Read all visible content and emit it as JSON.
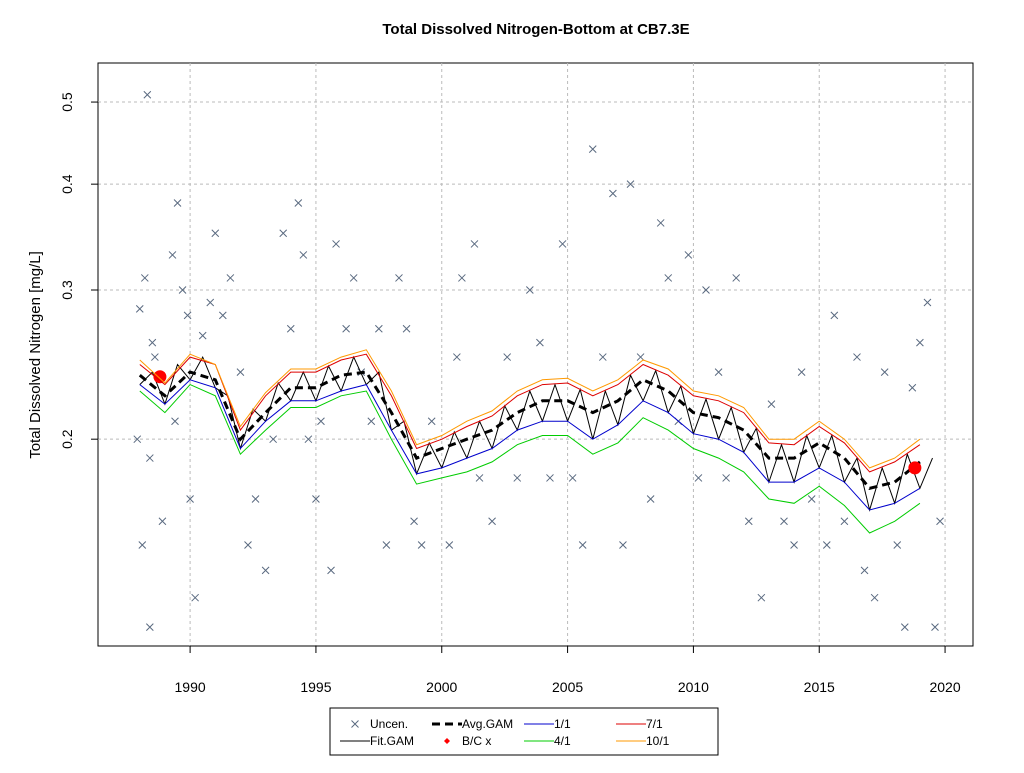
{
  "chart_data": {
    "type": "line",
    "title": "Total Dissolved Nitrogen-Bottom at CB7.3E",
    "y_label": "Total Dissolved Nitrogen [mg/L]",
    "log_y": true,
    "grid": true,
    "legend": "bottom",
    "xlim": [
      1986.34,
      2021.11
    ],
    "xticks": [
      1990,
      1995,
      2000,
      2005,
      2010,
      2015,
      2020
    ],
    "ylim": [
      0.114,
      0.556
    ],
    "yticks": [
      0.2,
      0.3,
      0.4,
      0.5
    ],
    "series": [
      {
        "name": "Uncen.",
        "type": "scatter",
        "color": "#5a6a80",
        "x": [
          1988.3,
          1988.0,
          1988.2,
          1988.5,
          1988.6,
          1987.9,
          1988.4,
          1988.1,
          1988.4,
          1988.9,
          1989.3,
          1989.5,
          1989.7,
          1989.4,
          1989.9,
          1990.0,
          1990.2,
          1990.5,
          1990.8,
          1991.0,
          1991.3,
          1991.6,
          1992.0,
          1992.3,
          1992.6,
          1993.0,
          1993.3,
          1993.7,
          1994.0,
          1994.3,
          1994.5,
          1994.7,
          1995.0,
          1995.2,
          1995.6,
          1995.8,
          1996.2,
          1996.5,
          1996.8,
          1997.2,
          1997.5,
          1997.8,
          1998.3,
          1998.6,
          1998.9,
          1999.2,
          1999.6,
          2000.3,
          2000.6,
          2000.8,
          2001.3,
          2001.5,
          2002.0,
          2002.6,
          2003.0,
          2003.5,
          2003.9,
          2004.3,
          2004.8,
          2005.2,
          2005.6,
          2006.0,
          2006.4,
          2006.8,
          2007.2,
          2007.5,
          2007.9,
          2008.3,
          2008.7,
          2009.0,
          2009.4,
          2009.8,
          2010.2,
          2010.5,
          2011.0,
          2011.3,
          2011.7,
          2012.2,
          2012.7,
          2013.1,
          2013.6,
          2014.0,
          2014.3,
          2014.7,
          2015.3,
          2015.6,
          2016.0,
          2016.5,
          2016.8,
          2017.2,
          2017.6,
          2018.1,
          2018.4,
          2018.7,
          2019.0,
          2019.3,
          2019.6,
          2019.8
        ],
        "values": [
          0.51,
          0.285,
          0.31,
          0.26,
          0.25,
          0.2,
          0.19,
          0.15,
          0.12,
          0.16,
          0.33,
          0.38,
          0.3,
          0.21,
          0.28,
          0.17,
          0.13,
          0.265,
          0.29,
          0.35,
          0.28,
          0.31,
          0.24,
          0.15,
          0.17,
          0.14,
          0.2,
          0.35,
          0.27,
          0.38,
          0.33,
          0.2,
          0.17,
          0.21,
          0.14,
          0.34,
          0.27,
          0.31,
          0.24,
          0.21,
          0.27,
          0.15,
          0.31,
          0.27,
          0.16,
          0.15,
          0.21,
          0.15,
          0.25,
          0.31,
          0.34,
          0.18,
          0.16,
          0.25,
          0.18,
          0.3,
          0.26,
          0.18,
          0.34,
          0.18,
          0.15,
          0.44,
          0.25,
          0.39,
          0.15,
          0.4,
          0.25,
          0.17,
          0.36,
          0.31,
          0.21,
          0.33,
          0.18,
          0.3,
          0.24,
          0.18,
          0.31,
          0.16,
          0.13,
          0.22,
          0.16,
          0.15,
          0.24,
          0.17,
          0.15,
          0.28,
          0.16,
          0.25,
          0.14,
          0.13,
          0.24,
          0.15,
          0.12,
          0.23,
          0.26,
          0.29,
          0.12,
          0.16
        ]
      },
      {
        "name": "Fit.GAM",
        "type": "line",
        "color": "#000000",
        "x": [
          1988,
          1988.5,
          1989,
          1989.5,
          1990,
          1990.5,
          1991,
          1991.5,
          1992,
          1992.5,
          1993,
          1993.5,
          1994,
          1994.5,
          1995,
          1995.5,
          1996,
          1996.5,
          1997,
          1997.5,
          1998,
          1998.5,
          1999,
          1999.5,
          2000,
          2000.5,
          2001,
          2001.5,
          2002,
          2002.5,
          2003,
          2003.5,
          2004,
          2004.5,
          2005,
          2005.5,
          2006,
          2006.5,
          2007,
          2007.5,
          2008,
          2008.5,
          2009,
          2009.5,
          2010,
          2010.5,
          2011,
          2011.5,
          2012,
          2012.5,
          2013,
          2013.5,
          2014,
          2014.5,
          2015,
          2015.5,
          2016,
          2016.5,
          2017,
          2017.5,
          2018,
          2018.5,
          2019,
          2019.5
        ],
        "values": [
          0.232,
          0.24,
          0.22,
          0.245,
          0.235,
          0.25,
          0.23,
          0.225,
          0.195,
          0.217,
          0.21,
          0.233,
          0.222,
          0.24,
          0.222,
          0.244,
          0.228,
          0.25,
          0.232,
          0.24,
          0.205,
          0.21,
          0.182,
          0.198,
          0.185,
          0.204,
          0.19,
          0.21,
          0.195,
          0.219,
          0.205,
          0.228,
          0.21,
          0.232,
          0.21,
          0.229,
          0.2,
          0.228,
          0.208,
          0.238,
          0.222,
          0.241,
          0.215,
          0.231,
          0.203,
          0.223,
          0.2,
          0.218,
          0.193,
          0.206,
          0.178,
          0.197,
          0.178,
          0.202,
          0.185,
          0.202,
          0.178,
          0.19,
          0.165,
          0.185,
          0.168,
          0.192,
          0.175,
          0.19
        ]
      },
      {
        "name": "Avg.GAM",
        "type": "line",
        "color": "#000000",
        "dash": "8,5",
        "width": 3,
        "x": [
          1988,
          1989,
          1990,
          1991,
          1992,
          1993,
          1994,
          1995,
          1996,
          1997,
          1998,
          1999,
          2000,
          2001,
          2002,
          2003,
          2004,
          2005,
          2006,
          2007,
          2008,
          2009,
          2010,
          2011,
          2012,
          2013,
          2014,
          2015,
          2016,
          2017,
          2018,
          2019
        ],
        "values": [
          0.238,
          0.225,
          0.24,
          0.235,
          0.2,
          0.215,
          0.23,
          0.23,
          0.238,
          0.24,
          0.215,
          0.19,
          0.195,
          0.2,
          0.205,
          0.215,
          0.222,
          0.222,
          0.215,
          0.222,
          0.235,
          0.228,
          0.215,
          0.212,
          0.205,
          0.19,
          0.19,
          0.198,
          0.19,
          0.175,
          0.178,
          0.188
        ]
      },
      {
        "name": "B/C x",
        "type": "points",
        "color": "#ff0000",
        "x": [
          1988.8,
          2018.8
        ],
        "values": [
          0.237,
          0.185
        ]
      },
      {
        "name": "1/1",
        "type": "line",
        "color": "#0000cc",
        "x": [
          1988,
          1989,
          1990,
          1991,
          1992,
          1993,
          1994,
          1995,
          1996,
          1997,
          1998,
          1999,
          2000,
          2001,
          2002,
          2003,
          2004,
          2005,
          2006,
          2007,
          2008,
          2009,
          2010,
          2011,
          2012,
          2013,
          2014,
          2015,
          2016,
          2017,
          2018,
          2019
        ],
        "values": [
          0.232,
          0.22,
          0.235,
          0.23,
          0.195,
          0.21,
          0.222,
          0.222,
          0.228,
          0.232,
          0.205,
          0.182,
          0.185,
          0.19,
          0.195,
          0.205,
          0.21,
          0.21,
          0.2,
          0.208,
          0.222,
          0.215,
          0.203,
          0.2,
          0.193,
          0.178,
          0.178,
          0.185,
          0.178,
          0.165,
          0.168,
          0.175
        ]
      },
      {
        "name": "4/1",
        "type": "line",
        "color": "#00cc00",
        "x": [
          1988,
          1989,
          1990,
          1991,
          1992,
          1993,
          1994,
          1995,
          1996,
          1997,
          1998,
          1999,
          2000,
          2001,
          2002,
          2003,
          2004,
          2005,
          2006,
          2007,
          2008,
          2009,
          2010,
          2011,
          2012,
          2013,
          2014,
          2015,
          2016,
          2017,
          2018,
          2019
        ],
        "values": [
          0.228,
          0.215,
          0.232,
          0.225,
          0.192,
          0.205,
          0.218,
          0.218,
          0.225,
          0.228,
          0.2,
          0.177,
          0.18,
          0.183,
          0.188,
          0.197,
          0.202,
          0.202,
          0.192,
          0.198,
          0.212,
          0.205,
          0.195,
          0.19,
          0.183,
          0.17,
          0.168,
          0.176,
          0.167,
          0.155,
          0.16,
          0.168
        ]
      },
      {
        "name": "7/1",
        "type": "line",
        "color": "#dd0000",
        "x": [
          1988,
          1989,
          1990,
          1991,
          1992,
          1993,
          1994,
          1995,
          1996,
          1997,
          1998,
          1999,
          2000,
          2001,
          2002,
          2003,
          2004,
          2005,
          2006,
          2007,
          2008,
          2009,
          2010,
          2011,
          2012,
          2013,
          2014,
          2015,
          2016,
          2017,
          2018,
          2019
        ],
        "values": [
          0.245,
          0.232,
          0.25,
          0.245,
          0.205,
          0.225,
          0.24,
          0.24,
          0.248,
          0.252,
          0.225,
          0.195,
          0.2,
          0.207,
          0.213,
          0.225,
          0.232,
          0.233,
          0.225,
          0.232,
          0.245,
          0.238,
          0.225,
          0.222,
          0.215,
          0.198,
          0.197,
          0.207,
          0.198,
          0.183,
          0.188,
          0.197
        ]
      },
      {
        "name": "10/1",
        "type": "line",
        "color": "#ff9900",
        "x": [
          1988,
          1989,
          1990,
          1991,
          1992,
          1993,
          1994,
          1995,
          1996,
          1997,
          1998,
          1999,
          2000,
          2001,
          2002,
          2003,
          2004,
          2005,
          2006,
          2007,
          2008,
          2009,
          2010,
          2011,
          2012,
          2013,
          2014,
          2015,
          2016,
          2017,
          2018,
          2019
        ],
        "values": [
          0.248,
          0.233,
          0.252,
          0.245,
          0.207,
          0.227,
          0.242,
          0.242,
          0.25,
          0.255,
          0.228,
          0.197,
          0.202,
          0.21,
          0.216,
          0.228,
          0.235,
          0.236,
          0.228,
          0.235,
          0.248,
          0.242,
          0.228,
          0.225,
          0.218,
          0.2,
          0.2,
          0.21,
          0.2,
          0.185,
          0.19,
          0.2
        ]
      }
    ]
  }
}
